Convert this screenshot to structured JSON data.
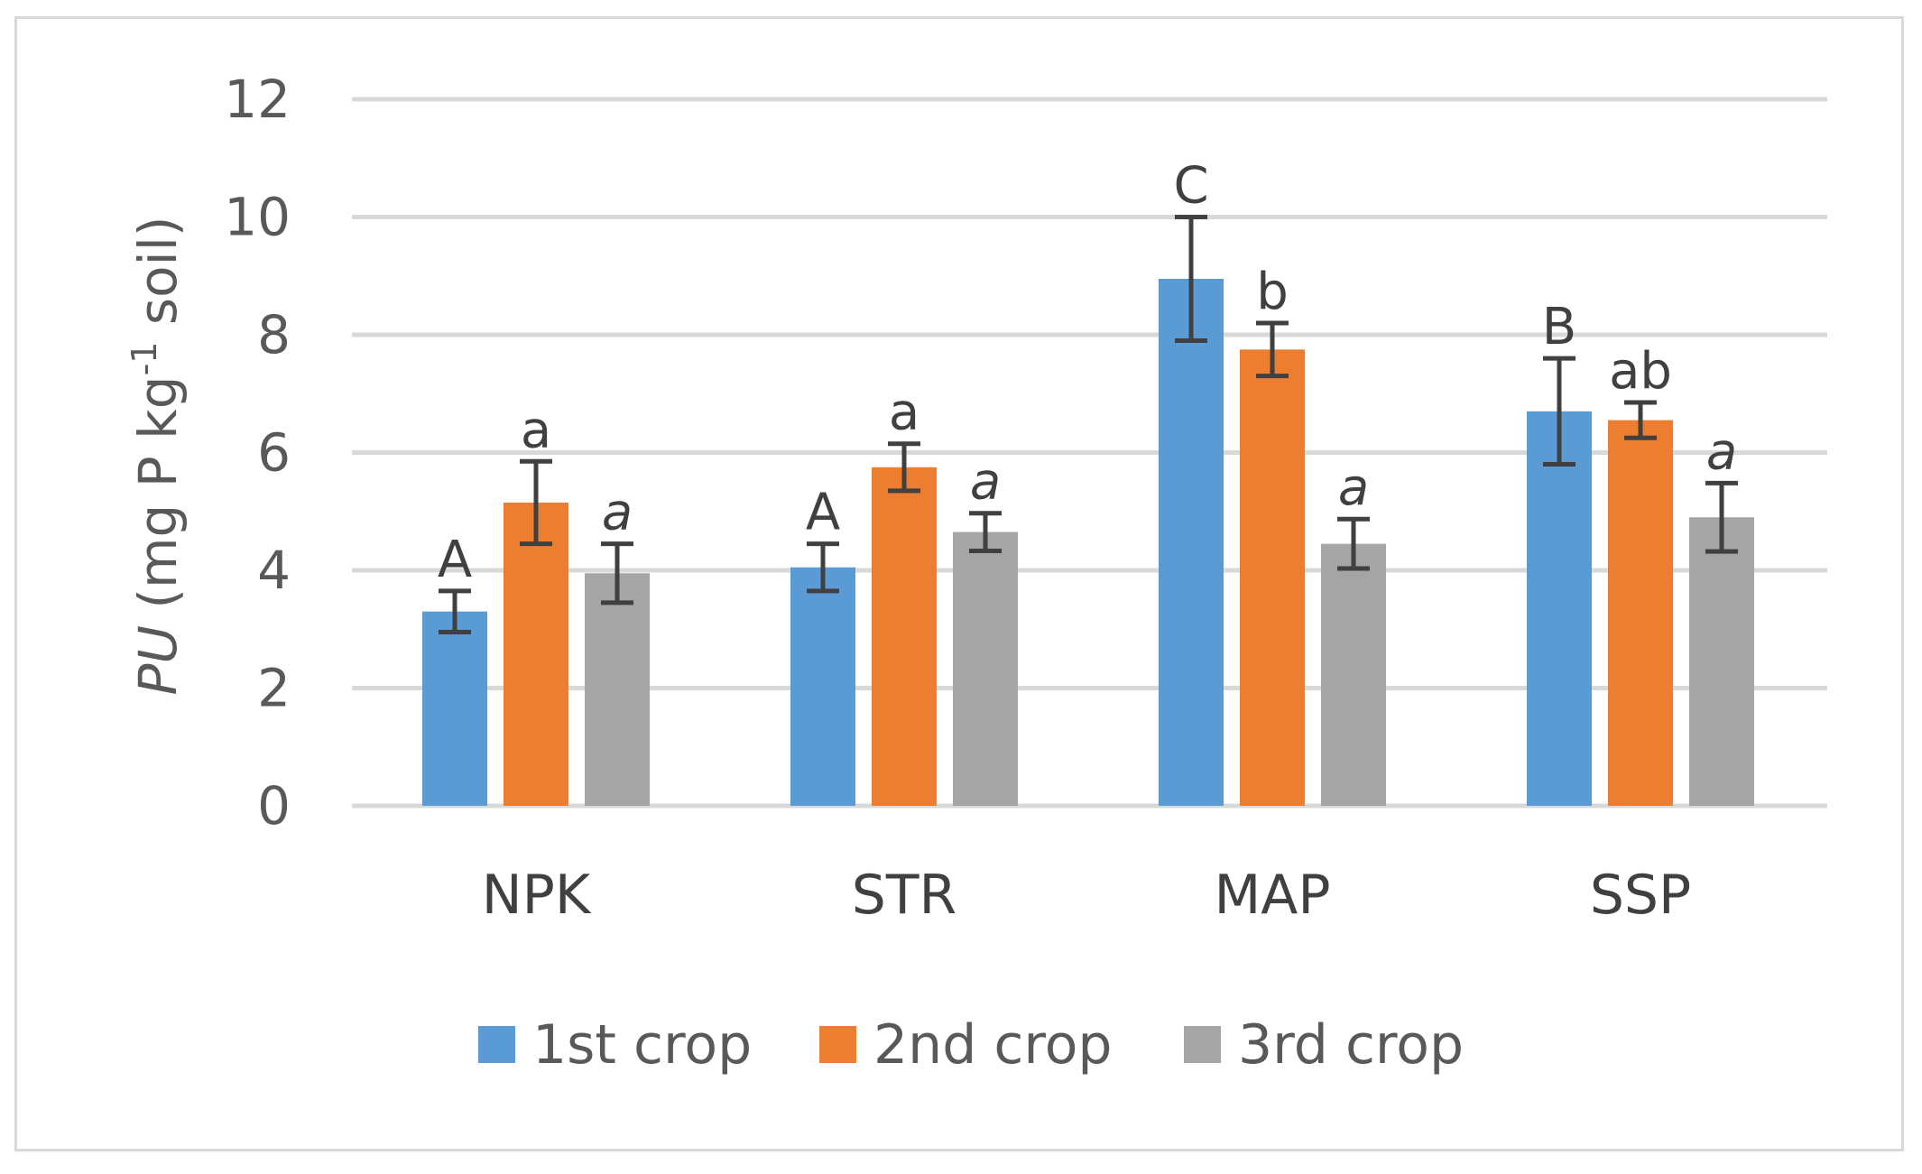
{
  "chart_data": {
    "type": "bar",
    "categories": [
      "NPK",
      "STR",
      "MAP",
      "SSP"
    ],
    "series": [
      {
        "name": "1st crop",
        "color": "#5b9bd5",
        "values": [
          3.3,
          4.05,
          8.95,
          6.7
        ],
        "errors": [
          0.35,
          0.4,
          1.05,
          0.9
        ],
        "labels": [
          "A",
          "A",
          "C",
          "B"
        ],
        "italic_labels": false
      },
      {
        "name": "2nd crop",
        "color": "#ed7d31",
        "values": [
          5.15,
          5.75,
          7.75,
          6.55
        ],
        "errors": [
          0.7,
          0.4,
          0.45,
          0.3
        ],
        "labels": [
          "a",
          "a",
          "b",
          "ab"
        ],
        "italic_labels": false
      },
      {
        "name": "3rd crop",
        "color": "#a5a5a5",
        "values": [
          3.95,
          4.65,
          4.45,
          4.9
        ],
        "errors": [
          0.5,
          0.32,
          0.42,
          0.58
        ],
        "labels": [
          "a",
          "a",
          "a",
          "a"
        ],
        "italic_labels": true
      }
    ],
    "ylim": [
      0,
      12
    ],
    "yticks": [
      0,
      2,
      4,
      6,
      8,
      10,
      12
    ],
    "ylabel": {
      "italic_part": "PU",
      "main": " (mg P kg",
      "superscript": "-1",
      "tail": " soil)"
    },
    "xlabel": "",
    "title": "",
    "grid": true,
    "legend_position": "bottom",
    "error_bar_color": "#404040",
    "grid_color": "#d9d9d9"
  }
}
